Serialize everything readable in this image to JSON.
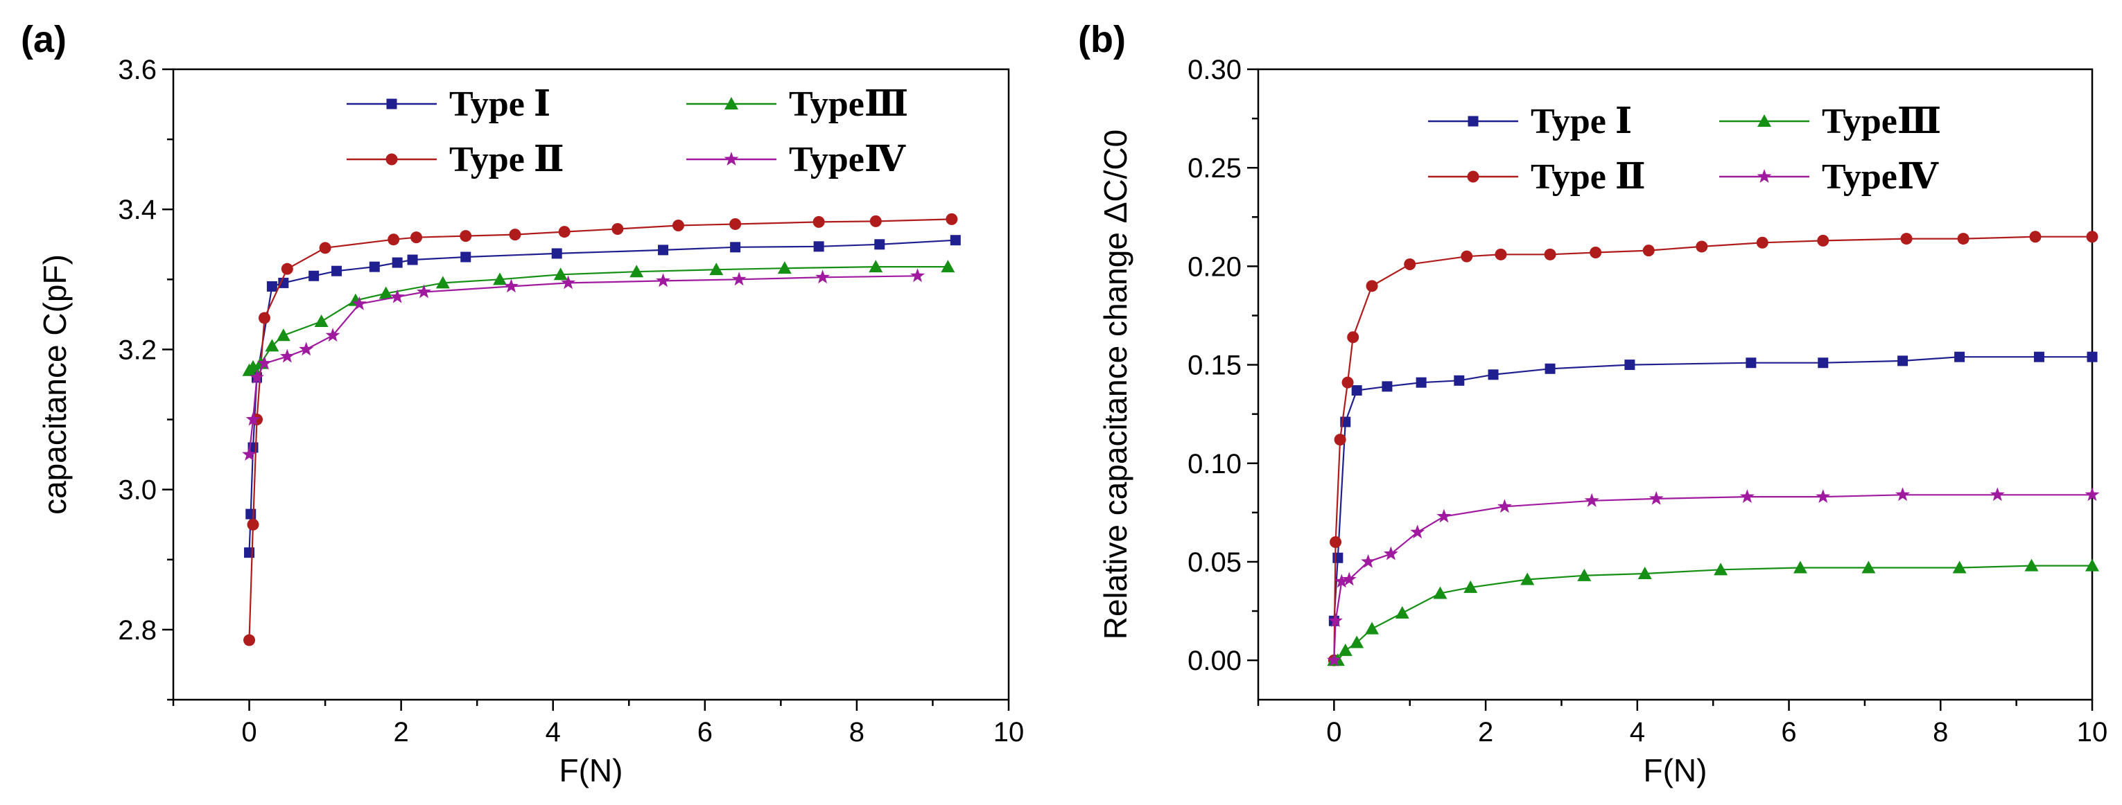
{
  "chart_data": [
    {
      "panel_label": "(a)",
      "type": "line",
      "xlabel": "F(N)",
      "ylabel": "capacitance C(pF)",
      "xlim": [
        -1,
        10
      ],
      "ylim": [
        2.7,
        3.6
      ],
      "xticks": [
        0,
        2,
        4,
        6,
        8,
        10
      ],
      "yticks": [
        2.8,
        3.0,
        3.2,
        3.4,
        3.6
      ],
      "ytick_labels": [
        "2.8",
        "3.0",
        "3.2",
        "3.4",
        "3.6"
      ],
      "grid": false,
      "legend_position": "top-center",
      "series": [
        {
          "name": "Type Ⅰ",
          "color": "#1f1f8f",
          "marker": "square",
          "x": [
            0,
            0.02,
            0.05,
            0.1,
            0.3,
            0.45,
            0.85,
            1.15,
            1.65,
            1.95,
            2.15,
            2.85,
            4.05,
            5.45,
            6.4,
            7.5,
            8.3,
            9.3
          ],
          "y": [
            2.91,
            2.965,
            3.06,
            3.16,
            3.29,
            3.295,
            3.305,
            3.312,
            3.318,
            3.324,
            3.328,
            3.332,
            3.337,
            3.342,
            3.346,
            3.347,
            3.35,
            3.356
          ]
        },
        {
          "name": "Type Ⅱ",
          "color": "#b01c1c",
          "marker": "circle",
          "x": [
            0,
            0.05,
            0.1,
            0.2,
            0.5,
            1.0,
            1.9,
            2.2,
            2.85,
            3.5,
            4.15,
            4.85,
            5.65,
            6.4,
            7.5,
            8.25,
            9.25
          ],
          "y": [
            2.785,
            2.95,
            3.1,
            3.245,
            3.315,
            3.345,
            3.357,
            3.36,
            3.362,
            3.364,
            3.368,
            3.372,
            3.377,
            3.379,
            3.382,
            3.383,
            3.386
          ]
        },
        {
          "name": "TypeⅢ",
          "color": "#159015",
          "marker": "triangle",
          "x": [
            0,
            0.05,
            0.15,
            0.3,
            0.45,
            0.95,
            1.4,
            1.8,
            2.55,
            3.3,
            4.1,
            5.1,
            6.15,
            7.05,
            8.25,
            9.2
          ],
          "y": [
            3.17,
            3.175,
            3.18,
            3.205,
            3.22,
            3.24,
            3.27,
            3.28,
            3.295,
            3.3,
            3.307,
            3.311,
            3.314,
            3.316,
            3.318,
            3.318
          ]
        },
        {
          "name": "TypeⅣ",
          "color": "#a01aa0",
          "marker": "star",
          "x": [
            0,
            0.05,
            0.1,
            0.2,
            0.5,
            0.75,
            1.1,
            1.45,
            1.95,
            2.3,
            3.45,
            4.2,
            5.45,
            6.45,
            7.55,
            8.8
          ],
          "y": [
            3.05,
            3.1,
            3.16,
            3.18,
            3.19,
            3.2,
            3.22,
            3.265,
            3.275,
            3.282,
            3.29,
            3.295,
            3.298,
            3.3,
            3.303,
            3.305
          ]
        }
      ]
    },
    {
      "panel_label": "(b)",
      "type": "line",
      "xlabel": "F(N)",
      "ylabel": "Relative capacitance change ΔC/C0",
      "xlim": [
        -1,
        10
      ],
      "ylim": [
        -0.02,
        0.3
      ],
      "xticks": [
        0,
        2,
        4,
        6,
        8,
        10
      ],
      "yticks": [
        0.0,
        0.05,
        0.1,
        0.15,
        0.2,
        0.25,
        0.3
      ],
      "ytick_labels": [
        "0.00",
        "0.05",
        "0.10",
        "0.15",
        "0.20",
        "0.25",
        "0.30"
      ],
      "grid": false,
      "legend_position": "top-center",
      "series": [
        {
          "name": "Type Ⅰ",
          "color": "#1f1f8f",
          "marker": "square",
          "x": [
            0,
            0.05,
            0.15,
            0.3,
            0.7,
            1.15,
            1.65,
            2.1,
            2.85,
            3.9,
            5.5,
            6.45,
            7.5,
            8.25,
            9.3,
            10
          ],
          "y": [
            0.02,
            0.052,
            0.121,
            0.137,
            0.139,
            0.141,
            0.142,
            0.145,
            0.148,
            0.15,
            0.151,
            0.151,
            0.152,
            0.154,
            0.154,
            0.154
          ]
        },
        {
          "name": "Type Ⅱ",
          "color": "#b01c1c",
          "marker": "circle",
          "x": [
            0,
            0.02,
            0.08,
            0.18,
            0.25,
            0.5,
            1.0,
            1.75,
            2.2,
            2.85,
            3.45,
            4.15,
            4.85,
            5.65,
            6.45,
            7.55,
            8.3,
            9.25,
            10
          ],
          "y": [
            0.0,
            0.06,
            0.112,
            0.141,
            0.164,
            0.19,
            0.201,
            0.205,
            0.206,
            0.206,
            0.207,
            0.208,
            0.21,
            0.212,
            0.213,
            0.214,
            0.214,
            0.215,
            0.215
          ]
        },
        {
          "name": "TypeⅢ",
          "color": "#159015",
          "marker": "triangle",
          "x": [
            0,
            0.05,
            0.15,
            0.3,
            0.5,
            0.9,
            1.4,
            1.8,
            2.55,
            3.3,
            4.1,
            5.1,
            6.15,
            7.05,
            8.25,
            9.2,
            10
          ],
          "y": [
            0.0,
            0.0,
            0.005,
            0.009,
            0.016,
            0.024,
            0.034,
            0.037,
            0.041,
            0.043,
            0.044,
            0.046,
            0.047,
            0.047,
            0.047,
            0.048,
            0.048
          ]
        },
        {
          "name": "TypeⅣ",
          "color": "#a01aa0",
          "marker": "star",
          "x": [
            0,
            0.02,
            0.1,
            0.2,
            0.45,
            0.75,
            1.1,
            1.45,
            2.25,
            3.4,
            4.25,
            5.45,
            6.45,
            7.5,
            8.75,
            10
          ],
          "y": [
            0.0,
            0.02,
            0.04,
            0.041,
            0.05,
            0.054,
            0.065,
            0.073,
            0.078,
            0.081,
            0.082,
            0.083,
            0.083,
            0.084,
            0.084,
            0.084
          ]
        }
      ]
    }
  ]
}
